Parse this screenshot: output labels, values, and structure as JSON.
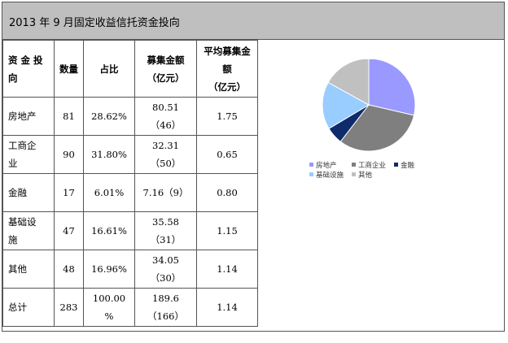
{
  "title": "2013 年 9 月固定收益信托资金投向",
  "table": {
    "headers": [
      "资 金 投 向",
      "数量",
      "占比",
      "募集金额（亿元）",
      "平均募集金额（亿元）"
    ],
    "header_lines": {
      "col0": [
        "资 金 投",
        "向"
      ],
      "col3": [
        "募集金额",
        "（亿元）"
      ],
      "col4": [
        "平均募集金",
        "额",
        "（亿元）"
      ]
    },
    "rows": [
      {
        "name": [
          "房地产"
        ],
        "count": "81",
        "share": "28.62%",
        "amount": [
          "80.51",
          "（46）"
        ],
        "avg": "1.75"
      },
      {
        "name": [
          "工商企",
          "业"
        ],
        "count": "90",
        "share": "31.80%",
        "amount": [
          "32.31",
          "（50）"
        ],
        "avg": "0.65"
      },
      {
        "name": [
          "金融"
        ],
        "count": "17",
        "share": "6.01%",
        "amount": [
          "7.16（9）"
        ],
        "avg": "0.80"
      },
      {
        "name": [
          "基础设",
          "施"
        ],
        "count": "47",
        "share": "16.61%",
        "amount": [
          "35.58",
          "（31）"
        ],
        "avg": "1.15"
      },
      {
        "name": [
          "其他"
        ],
        "count": "48",
        "share": "16.96%",
        "amount": [
          "34.05",
          "（30）"
        ],
        "avg": "1.14"
      },
      {
        "name": [
          "总计"
        ],
        "count": "283",
        "share": [
          "100.00",
          "%"
        ],
        "amount": [
          "189.6",
          "（166）"
        ],
        "avg": "1.14"
      }
    ]
  },
  "chart_data": {
    "type": "pie",
    "categories": [
      "房地产",
      "工商企业",
      "金融",
      "基础设施",
      "其他"
    ],
    "values": [
      28.62,
      31.8,
      6.01,
      16.61,
      16.96
    ],
    "colors": [
      "#9999ff",
      "#7f7f7f",
      "#0f2b6b",
      "#99ccff",
      "#c0c0c0"
    ],
    "legend": "bottom"
  }
}
